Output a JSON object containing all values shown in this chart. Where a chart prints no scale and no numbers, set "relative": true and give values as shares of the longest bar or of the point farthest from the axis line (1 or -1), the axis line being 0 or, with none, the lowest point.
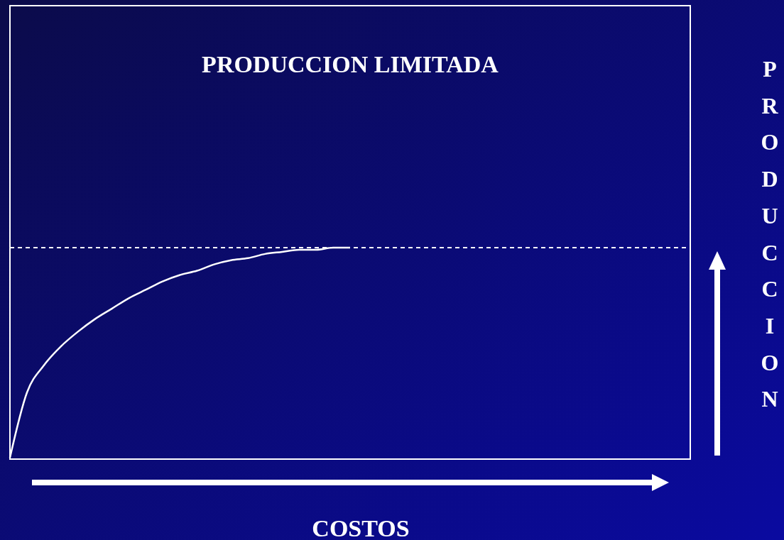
{
  "chart_data": {
    "type": "line",
    "title": "PRODUCCION LIMITADA",
    "xlabel": "COSTOS",
    "ylabel": "PRODUCCION",
    "relative": true,
    "categories": [
      null,
      null,
      null,
      null,
      null,
      null,
      null,
      null,
      null,
      null,
      null,
      null,
      null,
      null,
      null,
      null,
      null,
      null,
      null,
      null,
      null,
      null,
      null,
      null,
      null,
      null,
      null,
      null,
      null,
      null,
      null,
      null,
      null,
      null,
      null,
      null,
      null,
      null,
      null,
      null,
      null
    ],
    "series": [
      {
        "color": "#ffffff",
        "line_style": "solid",
        "values": [
          0,
          0.31,
          0.44,
          0.53,
          0.6,
          0.66,
          0.71,
          0.76,
          0.8,
          0.84,
          0.87,
          0.89,
          0.92,
          0.94,
          0.95,
          0.97,
          0.98,
          0.99,
          0.99,
          1,
          1,
          null,
          null,
          null,
          null,
          null,
          null,
          null,
          null,
          null,
          null,
          null,
          null,
          null,
          null,
          null,
          null,
          null,
          null,
          null,
          null
        ]
      }
    ],
    "ref_lines": [
      {
        "axis": "y",
        "value": 1,
        "color": "#ffffff",
        "line_style": "dashed"
      }
    ]
  }
}
